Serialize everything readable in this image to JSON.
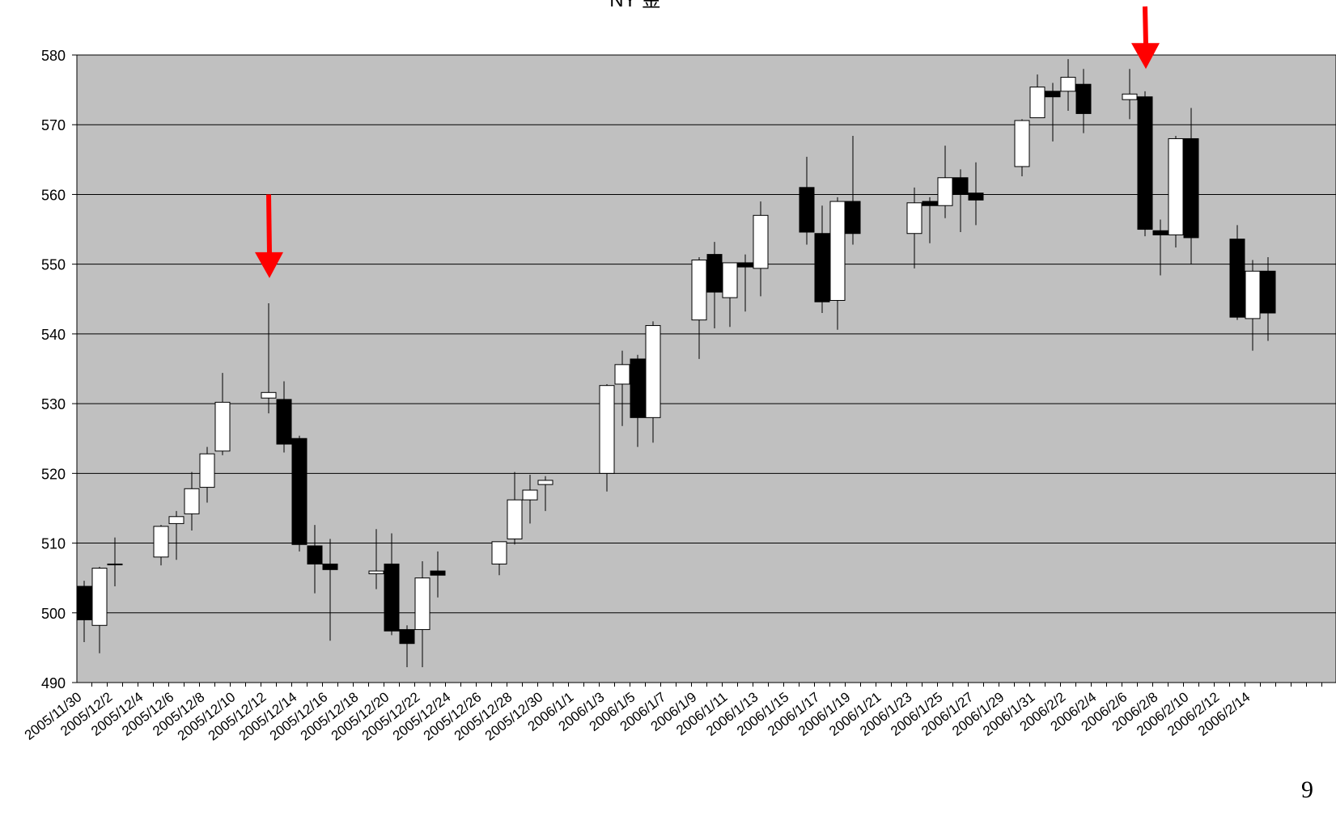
{
  "page_number": "9",
  "chart_data": {
    "type": "candlestick",
    "title": "NY 金",
    "ylim": [
      490,
      580
    ],
    "yticks": [
      490,
      500,
      510,
      520,
      530,
      540,
      550,
      560,
      570,
      580
    ],
    "xtick_labels": [
      "2005/11/30",
      "2005/12/2",
      "2005/12/4",
      "2005/12/6",
      "2005/12/8",
      "2005/12/10",
      "2005/12/12",
      "2005/12/14",
      "2005/12/16",
      "2005/12/18",
      "2005/12/20",
      "2005/12/22",
      "2005/12/24",
      "2005/12/26",
      "2005/12/28",
      "2005/12/30",
      "2006/1/1",
      "2006/1/3",
      "2006/1/5",
      "2006/1/7",
      "2006/1/9",
      "2006/1/11",
      "2006/1/13",
      "2006/1/15",
      "2006/1/17",
      "2006/1/19",
      "2006/1/21",
      "2006/1/23",
      "2006/1/25",
      "2006/1/27",
      "2006/1/29",
      "2006/1/31",
      "2006/2/2",
      "2006/2/4",
      "2006/2/6",
      "2006/2/8",
      "2006/2/10",
      "2006/2/12",
      "2006/2/14"
    ],
    "grid": true,
    "background": "#c0c0c0",
    "up_color": "#ffffff",
    "down_color": "#000000",
    "arrow_color": "#ff0000",
    "candles": [
      {
        "date": "2005/11/30",
        "open": 503.8,
        "high": 504.6,
        "low": 495.8,
        "close": 499.0
      },
      {
        "date": "2005/12/1",
        "open": 498.2,
        "high": 506.6,
        "low": 494.2,
        "close": 506.4
      },
      {
        "date": "2005/12/2",
        "open": 507.0,
        "high": 510.8,
        "low": 503.8,
        "close": 507.0
      },
      {
        "date": "2005/12/5",
        "open": 508.0,
        "high": 512.6,
        "low": 506.8,
        "close": 512.4
      },
      {
        "date": "2005/12/6",
        "open": 512.8,
        "high": 514.6,
        "low": 507.6,
        "close": 513.8
      },
      {
        "date": "2005/12/7",
        "open": 514.2,
        "high": 520.2,
        "low": 511.8,
        "close": 517.8
      },
      {
        "date": "2005/12/8",
        "open": 518.0,
        "high": 523.8,
        "low": 515.8,
        "close": 522.8
      },
      {
        "date": "2005/12/9",
        "open": 523.2,
        "high": 534.4,
        "low": 522.6,
        "close": 530.2
      },
      {
        "date": "2005/12/12",
        "open": 530.8,
        "high": 544.4,
        "low": 528.6,
        "close": 531.6
      },
      {
        "date": "2005/12/13",
        "open": 530.6,
        "high": 533.2,
        "low": 523.0,
        "close": 524.2
      },
      {
        "date": "2005/12/14",
        "open": 525.0,
        "high": 525.4,
        "low": 508.8,
        "close": 509.8
      },
      {
        "date": "2005/12/15",
        "open": 509.6,
        "high": 512.6,
        "low": 502.8,
        "close": 507.0
      },
      {
        "date": "2005/12/16",
        "open": 507.0,
        "high": 510.6,
        "low": 496.0,
        "close": 506.2
      },
      {
        "date": "2005/12/19",
        "open": 505.6,
        "high": 512.0,
        "low": 503.4,
        "close": 506.0
      },
      {
        "date": "2005/12/20",
        "open": 507.0,
        "high": 511.4,
        "low": 496.8,
        "close": 497.4
      },
      {
        "date": "2005/12/21",
        "open": 497.6,
        "high": 498.2,
        "low": 492.2,
        "close": 495.6
      },
      {
        "date": "2005/12/22",
        "open": 497.6,
        "high": 507.4,
        "low": 492.2,
        "close": 505.0
      },
      {
        "date": "2005/12/23",
        "open": 506.0,
        "high": 508.8,
        "low": 502.2,
        "close": 505.4
      },
      {
        "date": "2005/12/27",
        "open": 507.0,
        "high": 510.2,
        "low": 505.4,
        "close": 510.2
      },
      {
        "date": "2005/12/28",
        "open": 510.6,
        "high": 520.2,
        "low": 509.8,
        "close": 516.2
      },
      {
        "date": "2005/12/29",
        "open": 516.2,
        "high": 519.8,
        "low": 512.8,
        "close": 517.6
      },
      {
        "date": "2005/12/30",
        "open": 518.4,
        "high": 519.6,
        "low": 514.6,
        "close": 519.0
      },
      {
        "date": "2006/1/3",
        "open": 520.0,
        "high": 532.8,
        "low": 517.4,
        "close": 532.6
      },
      {
        "date": "2006/1/4",
        "open": 532.8,
        "high": 537.6,
        "low": 526.8,
        "close": 535.6
      },
      {
        "date": "2006/1/5",
        "open": 536.4,
        "high": 537.0,
        "low": 523.8,
        "close": 528.0
      },
      {
        "date": "2006/1/6",
        "open": 528.0,
        "high": 541.8,
        "low": 524.4,
        "close": 541.2
      },
      {
        "date": "2006/1/9",
        "open": 542.0,
        "high": 551.0,
        "low": 536.4,
        "close": 550.6
      },
      {
        "date": "2006/1/10",
        "open": 551.4,
        "high": 553.2,
        "low": 540.8,
        "close": 546.0
      },
      {
        "date": "2006/1/11",
        "open": 545.2,
        "high": 550.2,
        "low": 541.0,
        "close": 550.2
      },
      {
        "date": "2006/1/12",
        "open": 550.2,
        "high": 551.4,
        "low": 543.2,
        "close": 549.6
      },
      {
        "date": "2006/1/13",
        "open": 549.4,
        "high": 559.0,
        "low": 545.4,
        "close": 557.0
      },
      {
        "date": "2006/1/16",
        "open": 561.0,
        "high": 565.4,
        "low": 552.8,
        "close": 554.6
      },
      {
        "date": "2006/1/17",
        "open": 554.4,
        "high": 558.4,
        "low": 543.0,
        "close": 544.6
      },
      {
        "date": "2006/1/18",
        "open": 544.8,
        "high": 559.6,
        "low": 540.6,
        "close": 559.0
      },
      {
        "date": "2006/1/19",
        "open": 559.0,
        "high": 568.4,
        "low": 552.8,
        "close": 554.4
      },
      {
        "date": "2006/1/23",
        "open": 554.4,
        "high": 561.0,
        "low": 549.4,
        "close": 558.8
      },
      {
        "date": "2006/1/24",
        "open": 559.0,
        "high": 559.6,
        "low": 553.0,
        "close": 558.4
      },
      {
        "date": "2006/1/25",
        "open": 558.4,
        "high": 567.0,
        "low": 556.6,
        "close": 562.4
      },
      {
        "date": "2006/1/26",
        "open": 562.4,
        "high": 563.6,
        "low": 554.6,
        "close": 560.0
      },
      {
        "date": "2006/1/27",
        "open": 560.2,
        "high": 564.6,
        "low": 555.6,
        "close": 559.2
      },
      {
        "date": "2006/1/30",
        "open": 564.0,
        "high": 570.8,
        "low": 562.6,
        "close": 570.6
      },
      {
        "date": "2006/1/31",
        "open": 571.0,
        "high": 577.2,
        "low": 571.0,
        "close": 575.4
      },
      {
        "date": "2006/2/1",
        "open": 574.8,
        "high": 576.0,
        "low": 567.6,
        "close": 574.0
      },
      {
        "date": "2006/2/2",
        "open": 574.8,
        "high": 579.4,
        "low": 572.0,
        "close": 576.8
      },
      {
        "date": "2006/2/3",
        "open": 575.8,
        "high": 578.0,
        "low": 568.8,
        "close": 571.6
      },
      {
        "date": "2006/2/6",
        "open": 573.6,
        "high": 578.0,
        "low": 570.8,
        "close": 574.4
      },
      {
        "date": "2006/2/7",
        "open": 574.0,
        "high": 574.8,
        "low": 554.0,
        "close": 555.0
      },
      {
        "date": "2006/2/8",
        "open": 554.8,
        "high": 556.4,
        "low": 548.4,
        "close": 554.2
      },
      {
        "date": "2006/2/9",
        "open": 554.2,
        "high": 568.4,
        "low": 552.4,
        "close": 568.0
      },
      {
        "date": "2006/2/10",
        "open": 568.0,
        "high": 572.4,
        "low": 550.0,
        "close": 553.8
      },
      {
        "date": "2006/2/13",
        "open": 553.6,
        "high": 555.6,
        "low": 542.0,
        "close": 542.4
      },
      {
        "date": "2006/2/14",
        "open": 542.2,
        "high": 550.6,
        "low": 537.6,
        "close": 549.0
      },
      {
        "date": "2006/2/15",
        "open": 549.0,
        "high": 551.0,
        "low": 539.0,
        "close": 543.0
      }
    ],
    "annotations": [
      {
        "kind": "arrow-down",
        "date": "2005/12/12",
        "from": 560,
        "to": 548
      },
      {
        "kind": "arrow-down",
        "date": "2006/2/7",
        "from": 587,
        "to": 578
      }
    ]
  }
}
